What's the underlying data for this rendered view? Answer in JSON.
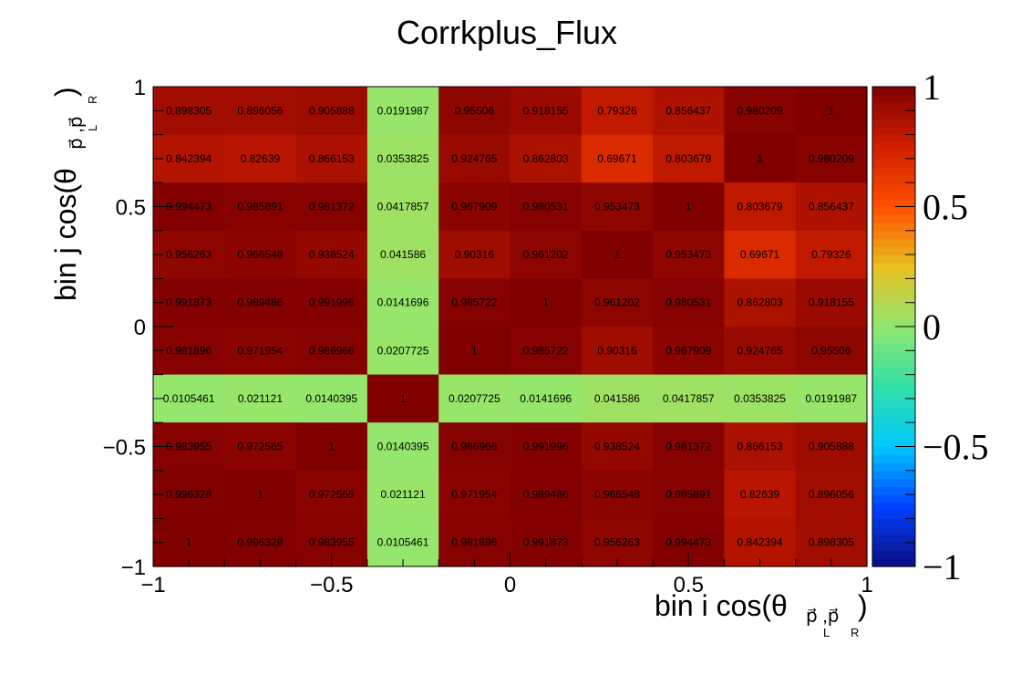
{
  "chart_data": {
    "type": "heatmap",
    "title": "Corrkplus_Flux",
    "xlabel": {
      "main": "bin i cos(θ",
      "sub": "p⃗ ,p⃗",
      "subL": "L",
      "subR": "R",
      "close": ")"
    },
    "ylabel": {
      "main": "bin j cos(θ",
      "sub": "p⃗ ,p⃗",
      "subL": "L",
      "subR": "R",
      "close": ")"
    },
    "xlim": [
      -1,
      1
    ],
    "ylim": [
      -1,
      1
    ],
    "zlim": [
      -1,
      1
    ],
    "x_tick_labels": [
      "−1",
      "−0.5",
      "0",
      "0.5",
      "1"
    ],
    "y_tick_labels": [
      "−1",
      "−0.5",
      "0",
      "0.5",
      "1"
    ],
    "z_tick_labels": [
      "−1",
      "−0.5",
      "0",
      "0.5",
      "1"
    ],
    "colormap": [
      "#0d0d80",
      "#0040ff",
      "#00c8ff",
      "#30e0a8",
      "#90e870",
      "#e8c020",
      "#ff5000",
      "#d02000",
      "#800000"
    ],
    "rows": [
      [
        "0.898305",
        "0.896056",
        "0.905888",
        "0.0191987",
        "0.95506",
        "0.918155",
        "0.79326",
        "0.856437",
        "0.980209",
        "1"
      ],
      [
        "0.842394",
        "0.82639",
        "0.866153",
        "0.0353825",
        "0.924765",
        "0.862803",
        "0.69671",
        "0.803679",
        "1",
        "0.980209"
      ],
      [
        "0.994473",
        "0.985891",
        "0.981372",
        "0.0417857",
        "0.967909",
        "0.980531",
        "0.953473",
        "1",
        "0.803679",
        "0.856437"
      ],
      [
        "0.956263",
        "0.966548",
        "0.938524",
        "0.041586",
        "0.90316",
        "0.961202",
        "1",
        "0.953473",
        "0.69671",
        "0.79326"
      ],
      [
        "0.991873",
        "0.989486",
        "0.991996",
        "0.0141696",
        "0.985722",
        "1",
        "0.961202",
        "0.980531",
        "0.862803",
        "0.918155"
      ],
      [
        "0.981896",
        "0.971954",
        "0.986966",
        "0.0207725",
        "1",
        "0.985722",
        "0.90316",
        "0.967909",
        "0.924765",
        "0.95506"
      ],
      [
        "0.0105461",
        "0.021121",
        "0.0140395",
        "1",
        "0.0207725",
        "0.0141696",
        "0.041586",
        "0.0417857",
        "0.0353825",
        "0.0191987"
      ],
      [
        "0.983955",
        "0.972565",
        "1",
        "0.0140395",
        "0.986966",
        "0.991996",
        "0.938524",
        "0.981372",
        "0.866153",
        "0.905888"
      ],
      [
        "0.996328",
        "1",
        "0.972565",
        "0.021121",
        "0.971954",
        "0.989486",
        "0.966548",
        "0.985891",
        "0.82639",
        "0.896056"
      ],
      [
        "1",
        "0.996328",
        "0.983955",
        "0.0105461",
        "0.981896",
        "0.991873",
        "0.956263",
        "0.994473",
        "0.842394",
        "0.898305"
      ]
    ]
  }
}
